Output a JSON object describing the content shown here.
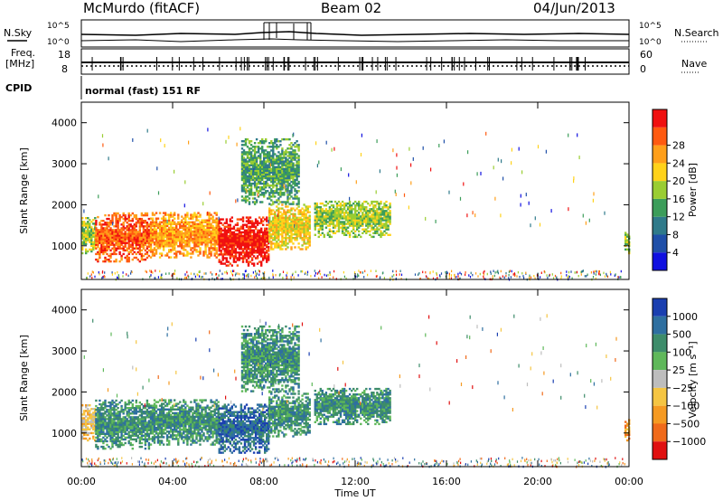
{
  "header": {
    "station": "McMurdo (fitACF)",
    "beam": "Beam 02",
    "date": "04/Jun/2013"
  },
  "status_panels": {
    "nsky_label": "N.Sky",
    "nsearch_label": "N.Search",
    "freq_label_line1": "Freq.",
    "freq_label_line2": "[MHz]",
    "nave_label": "Nave",
    "cpid_label": "CPID",
    "cpid_value": "normal (fast) 151 RF",
    "noise_ticks": [
      "10^5",
      "10^0"
    ],
    "freq_ticks": [
      "18",
      "8"
    ],
    "nave_ticks": [
      "60",
      "0"
    ]
  },
  "chart_data": [
    {
      "type": "heatmap",
      "name": "power",
      "xlabel": "",
      "ylabel": "Slant Range [km]",
      "y_ticks": [
        1000,
        2000,
        3000,
        4000
      ],
      "ylim": [
        180,
        4500
      ],
      "x_ticks": [
        0,
        4,
        8,
        12,
        16,
        20,
        24
      ],
      "xlim": [
        0,
        24
      ],
      "colorbar": {
        "label": "Power [dB]",
        "tick_labels": [
          "4",
          "8",
          "12",
          "16",
          "20",
          "24",
          "28"
        ],
        "colors": [
          "#1010e0",
          "#1f4fa8",
          "#2f7a8a",
          "#3c9d5a",
          "#9acd32",
          "#ffd21a",
          "#ff9f1a",
          "#ff5a10",
          "#f01010"
        ]
      },
      "echo_regions": [
        {
          "t0": 0.0,
          "t1": 0.6,
          "r0": 800,
          "r1": 1700,
          "level": 4
        },
        {
          "t0": 0.6,
          "t1": 3.0,
          "r0": 600,
          "r1": 1800,
          "level": 7
        },
        {
          "t0": 3.0,
          "t1": 6.0,
          "r0": 700,
          "r1": 1800,
          "level": 6
        },
        {
          "t0": 6.0,
          "t1": 8.2,
          "r0": 500,
          "r1": 1700,
          "level": 8
        },
        {
          "t0": 8.2,
          "t1": 10.0,
          "r0": 900,
          "r1": 2000,
          "level": 5
        },
        {
          "t0": 10.2,
          "t1": 13.5,
          "r0": 1200,
          "r1": 2100,
          "level": 4
        },
        {
          "t0": 7.0,
          "t1": 9.5,
          "r0": 2000,
          "r1": 3600,
          "level": 3
        },
        {
          "t0": 23.8,
          "t1": 24.0,
          "r0": 800,
          "r1": 1300,
          "level": 4
        }
      ]
    },
    {
      "type": "heatmap",
      "name": "velocity",
      "xlabel": "Time UT",
      "ylabel": "Slant Range [km]",
      "y_ticks": [
        1000,
        2000,
        3000,
        4000
      ],
      "ylim": [
        180,
        4500
      ],
      "x_ticks": [
        0,
        4,
        8,
        12,
        16,
        20,
        24
      ],
      "x_tick_labels": [
        "00:00",
        "04:00",
        "08:00",
        "12:00",
        "16:00",
        "20:00",
        "00:00"
      ],
      "xlim": [
        0,
        24
      ],
      "colorbar": {
        "label": "Velocity [m s⁻¹]",
        "tick_labels": [
          "1000",
          "500",
          "100",
          "25",
          "−25",
          "−100",
          "−500",
          "−1000"
        ],
        "colors": [
          "#1a3fb0",
          "#2e6fa0",
          "#3d8c6a",
          "#5fb85a",
          "#bdbdbd",
          "#f5c542",
          "#f59a22",
          "#f06a1a",
          "#e01010"
        ]
      },
      "echo_regions": [
        {
          "t0": 0.0,
          "t1": 0.6,
          "r0": 800,
          "r1": 1700,
          "level": 5
        },
        {
          "t0": 0.6,
          "t1": 3.0,
          "r0": 600,
          "r1": 1800,
          "level": 2
        },
        {
          "t0": 3.0,
          "t1": 6.0,
          "r0": 700,
          "r1": 1800,
          "level": 2
        },
        {
          "t0": 6.0,
          "t1": 8.2,
          "r0": 500,
          "r1": 1700,
          "level": 1
        },
        {
          "t0": 8.2,
          "t1": 10.0,
          "r0": 900,
          "r1": 2000,
          "level": 2
        },
        {
          "t0": 10.2,
          "t1": 13.5,
          "r0": 1200,
          "r1": 2100,
          "level": 2
        },
        {
          "t0": 7.0,
          "t1": 9.5,
          "r0": 2000,
          "r1": 3600,
          "level": 2
        },
        {
          "t0": 23.8,
          "t1": 24.0,
          "r0": 800,
          "r1": 1300,
          "level": 6
        }
      ]
    }
  ]
}
